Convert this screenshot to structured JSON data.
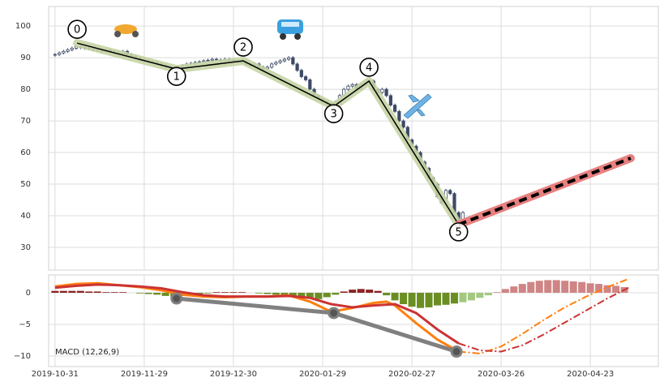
{
  "chart_data": [
    {
      "type": "candlestick",
      "x": [
        0,
        1,
        2,
        3,
        4,
        5,
        6,
        7,
        8,
        9,
        10,
        11,
        12,
        13,
        14,
        15,
        16,
        17,
        18,
        19,
        20,
        21,
        22,
        23,
        24,
        25,
        26,
        27,
        28,
        29,
        30,
        31,
        32,
        33,
        34,
        35,
        36,
        37,
        38,
        39,
        40,
        41,
        42,
        43,
        44,
        45,
        46,
        47,
        48,
        49,
        50,
        51,
        52,
        53,
        54,
        55,
        56,
        57,
        58,
        59,
        60,
        61,
        62,
        63,
        64,
        65,
        66,
        67,
        68,
        69,
        70,
        71,
        72,
        73,
        74,
        75,
        76,
        77,
        78,
        79,
        80,
        81,
        82,
        83,
        84,
        85,
        86,
        87,
        88,
        89,
        90,
        91,
        92,
        93,
        94,
        95,
        96
      ],
      "open": [
        90.8,
        91,
        91.5,
        92,
        92.5,
        93,
        93.5,
        93.2,
        93,
        92.8,
        92.5,
        92.3,
        92,
        92.4,
        91.8,
        91.5,
        91.2,
        92,
        91,
        90.5,
        90,
        89.5,
        89,
        88.8,
        88.5,
        88,
        87.5,
        87,
        86.8,
        86.5,
        87,
        87.5,
        88,
        88.2,
        88.5,
        88.7,
        89,
        89.2,
        89.5,
        89.3,
        89,
        89.5,
        89.2,
        89,
        88.8,
        88.5,
        88,
        87.5,
        88,
        87,
        86.5,
        87,
        88,
        88.5,
        89,
        89.5,
        90,
        88,
        86,
        84,
        83,
        80,
        78,
        77,
        76,
        75.5,
        74.6,
        76,
        78,
        80,
        81,
        81.5,
        80,
        81.5,
        82,
        82.6,
        80,
        79,
        80,
        78,
        75,
        73,
        70,
        68,
        64,
        62,
        60,
        57,
        55,
        52,
        50,
        46,
        44,
        48,
        47,
        41,
        37
      ],
      "high": [
        91.5,
        92,
        92.5,
        93,
        93.5,
        94,
        94,
        93.7,
        93.5,
        93.3,
        93,
        92.8,
        92.9,
        92.9,
        92.3,
        92,
        92.5,
        92.5,
        91.5,
        91,
        90.5,
        90,
        89.5,
        89.3,
        89,
        88.5,
        88,
        87.5,
        87.3,
        87.5,
        88,
        88.5,
        88.7,
        89,
        89.2,
        89.5,
        89.7,
        90,
        90,
        89.8,
        90,
        90,
        89.7,
        89.5,
        89.3,
        89,
        88.5,
        88.5,
        88.5,
        87.5,
        87.5,
        88.5,
        89,
        89.5,
        90,
        90.5,
        90.5,
        88.5,
        86.5,
        84.5,
        83.5,
        80.5,
        78.5,
        77.5,
        76.5,
        76,
        76.5,
        78.5,
        80.5,
        81.5,
        82,
        82,
        82,
        82.5,
        83.1,
        83.1,
        80.5,
        80.5,
        80.5,
        78.5,
        75.5,
        73.5,
        70.5,
        68.5,
        64.5,
        62.5,
        60.5,
        57.5,
        55.5,
        52.5,
        50.5,
        46.5,
        48.5,
        48.5,
        47.5,
        41.5,
        41.5
      ],
      "low": [
        90.3,
        90.5,
        91,
        91.5,
        92,
        92.5,
        92.7,
        92.5,
        92.3,
        92,
        91.8,
        91.5,
        91.5,
        91.3,
        91,
        90.7,
        90.7,
        90.5,
        90,
        89.5,
        89,
        88.5,
        88.3,
        88,
        87.5,
        87,
        86.5,
        86.3,
        86,
        86,
        86.5,
        87,
        87.5,
        87.7,
        88,
        88.2,
        88.5,
        88.7,
        88.8,
        88.5,
        88.5,
        88.7,
        88.5,
        88.3,
        88,
        87.5,
        87,
        87,
        86.5,
        86,
        86,
        86.5,
        87.5,
        88,
        88.5,
        89,
        87.5,
        85.5,
        83.5,
        82.5,
        79.5,
        77.5,
        76.5,
        75.5,
        75,
        74.1,
        74.1,
        75.5,
        77.5,
        79.5,
        80.5,
        79.5,
        79.5,
        81,
        81.5,
        79.5,
        78.5,
        78.5,
        77.5,
        74.5,
        72.5,
        69.5,
        67.5,
        63.5,
        61.5,
        59.5,
        56.5,
        54.5,
        51.5,
        49.5,
        45.5,
        43.5,
        43.5,
        46.5,
        40.5,
        36.5,
        36.5
      ],
      "close": [
        91,
        91.5,
        92,
        92.5,
        93,
        93.5,
        93.2,
        93,
        92.8,
        92.5,
        92.3,
        92,
        92.4,
        91.8,
        91.5,
        91.2,
        92,
        91,
        90.5,
        90,
        89.5,
        89,
        88.8,
        88.5,
        88,
        87.5,
        87,
        86.8,
        86.5,
        87,
        87.5,
        88,
        88.2,
        88.5,
        88.7,
        89,
        89.2,
        89.5,
        89.3,
        89,
        89.5,
        89.2,
        89,
        88.8,
        88.5,
        88,
        87.5,
        88,
        87,
        86.5,
        87,
        88,
        88.5,
        89,
        89.5,
        90,
        88,
        86,
        84,
        83,
        80,
        78,
        77,
        76,
        75.5,
        74.6,
        76,
        78,
        80,
        81,
        81.5,
        80,
        81.5,
        82,
        82.6,
        80,
        79,
        80,
        78,
        75,
        73,
        70,
        68,
        64,
        62,
        60,
        57,
        55,
        52,
        50,
        46,
        44,
        48,
        47,
        41,
        37,
        41
      ],
      "up_color": "#ffffff",
      "down_color": "#3d4a66",
      "edge_color": "#3d4a66",
      "waves": {
        "labels": [
          "0",
          "1",
          "2",
          "3",
          "4",
          "5"
        ],
        "x": [
          5.2,
          28.6,
          44.3,
          65.6,
          73.9,
          95
        ],
        "y": [
          94.6,
          86.4,
          89,
          74.6,
          82.6,
          37.2
        ],
        "color": "#c5d4a4"
      },
      "projection": {
        "x": [
          95,
          135.5
        ],
        "y": [
          37.2,
          58.2
        ],
        "color": "#e88080"
      },
      "ylim": [
        22.8,
        106.2
      ],
      "yticks": [
        30,
        40,
        50,
        60,
        70,
        80,
        90,
        100
      ],
      "grid": true
    },
    {
      "type": "macd",
      "label": "MACD (12,26,9)",
      "series": [
        {
          "color": "#ff7f0e",
          "style": "solid",
          "x": [
            0,
            5,
            10,
            15,
            20,
            25,
            30,
            35,
            40,
            45,
            50,
            55,
            60,
            65,
            70,
            75,
            78,
            80,
            85,
            90,
            95
          ],
          "values": [
            1.0,
            1.4,
            1.5,
            1.2,
            0.9,
            0.4,
            -0.3,
            -0.6,
            -0.7,
            -0.6,
            -0.6,
            -0.4,
            -1.4,
            -3.0,
            -2.4,
            -1.6,
            -1.4,
            -2.0,
            -4.8,
            -7.4,
            -9.3
          ]
        },
        {
          "color": "#cc3333",
          "style": "solid",
          "x": [
            0,
            5,
            10,
            15,
            20,
            25,
            30,
            35,
            40,
            45,
            50,
            55,
            60,
            65,
            70,
            75,
            80,
            85,
            90,
            95
          ],
          "values": [
            0.8,
            1.1,
            1.3,
            1.2,
            1.0,
            0.7,
            0.1,
            -0.4,
            -0.6,
            -0.6,
            -0.6,
            -0.5,
            -0.8,
            -1.8,
            -2.3,
            -2.0,
            -1.8,
            -3.2,
            -5.8,
            -8.0
          ]
        },
        {
          "color": "#ff7f0e",
          "style": "dashdot",
          "x": [
            95,
            100,
            105,
            110,
            115,
            120,
            125,
            130,
            135
          ],
          "values": [
            -9.3,
            -9.6,
            -8.5,
            -6.5,
            -4.3,
            -2.3,
            -0.6,
            0.9,
            2.2
          ]
        },
        {
          "color": "#cc3333",
          "style": "dashdot",
          "x": [
            95,
            100,
            105,
            110,
            115,
            120,
            125,
            130,
            135
          ],
          "values": [
            -8.0,
            -9.1,
            -9.3,
            -8.3,
            -6.6,
            -4.7,
            -2.8,
            -0.9,
            0.8
          ]
        }
      ],
      "histograms": [
        {
          "pos_color": "#8b2323",
          "neg_color": "#6b8e23",
          "x": [
            0,
            2,
            4,
            6,
            8,
            10,
            12,
            14,
            16,
            18,
            20,
            22,
            24,
            26,
            28,
            30,
            32,
            34,
            36,
            38,
            40,
            42,
            44,
            46,
            48,
            50,
            52,
            54,
            56,
            58,
            60,
            62,
            64,
            66,
            68,
            70,
            72,
            74,
            76,
            78,
            80,
            82,
            84,
            86,
            88,
            90,
            92,
            94
          ],
          "values": [
            0.3,
            0.3,
            0.3,
            0.3,
            0.2,
            0.2,
            0.1,
            0.1,
            0.1,
            0,
            -0.1,
            -0.2,
            -0.3,
            -0.5,
            -0.6,
            -0.5,
            -0.3,
            -0.2,
            -0.1,
            0.1,
            0.1,
            0.1,
            0.1,
            0,
            -0.1,
            -0.2,
            -0.3,
            -0.4,
            -0.6,
            -0.8,
            -0.9,
            -1.0,
            -0.7,
            -0.3,
            0.2,
            0.5,
            0.6,
            0.5,
            0.3,
            -0.4,
            -1.2,
            -1.8,
            -2.2,
            -2.4,
            -2.3,
            -2.0,
            -1.9,
            -1.7
          ]
        },
        {
          "pos_color": "#cf8585",
          "neg_color": "#a3c97e",
          "x": [
            96,
            98,
            100,
            102,
            104,
            106,
            108,
            110,
            112,
            114,
            116,
            118,
            120,
            122,
            124,
            126,
            128,
            130,
            132,
            134
          ],
          "values": [
            -1.5,
            -1.2,
            -0.8,
            -0.4,
            0.1,
            0.6,
            1.0,
            1.4,
            1.7,
            1.9,
            2.0,
            2.0,
            1.9,
            1.8,
            1.7,
            1.5,
            1.4,
            1.2,
            1.1,
            0.9
          ]
        }
      ],
      "pivots": {
        "x": [
          28.6,
          65.6,
          94.5
        ],
        "y": [
          -0.9,
          -3.2,
          -9.3
        ],
        "color": "#808080"
      },
      "xlim": [
        -1.5,
        142
      ],
      "xticks": [
        {
          "value": 0,
          "label": "2019-10-31"
        },
        {
          "value": 21,
          "label": "2019-11-29"
        },
        {
          "value": 42,
          "label": "2019-12-30"
        },
        {
          "value": 63,
          "label": "2020-01-29"
        },
        {
          "value": 84,
          "label": "2020-02-27"
        },
        {
          "value": 105,
          "label": "2020-03-26"
        },
        {
          "value": 126,
          "label": "2020-04-23"
        }
      ],
      "ylim": [
        -11.67,
        2.82
      ],
      "yticks": [
        {
          "value": 0,
          "label": "0"
        },
        {
          "value": -5,
          "label": "−5"
        },
        {
          "value": -10,
          "label": "−10"
        }
      ],
      "grid": true
    }
  ]
}
